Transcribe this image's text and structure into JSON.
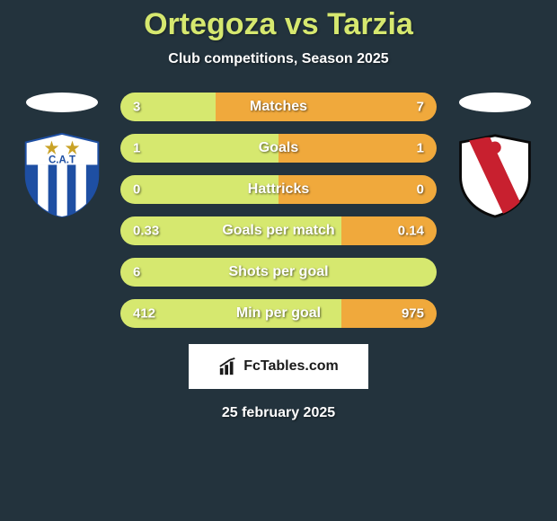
{
  "background_color": "#23333d",
  "accent_color": "#d6e86f",
  "bar_right_color": "#f0a93c",
  "text_color": "#ffffff",
  "title": "Ortegoza vs Tarzia",
  "title_fontsize": 34,
  "subtitle": "Club competitions, Season 2025",
  "subtitle_fontsize": 16,
  "date": "25 february 2025",
  "player_left": {
    "crest": {
      "type": "shield",
      "bg": "#ffffff",
      "stripes": [
        "#1e4fa3",
        "#ffffff",
        "#1e4fa3",
        "#ffffff",
        "#1e4fa3"
      ],
      "initials": "C.A.T",
      "stars": 2,
      "star_color": "#c9a227"
    }
  },
  "player_right": {
    "crest": {
      "type": "shield",
      "bg": "#ffffff",
      "sash_color": "#c8202f",
      "border_color": "#0a0a0a"
    }
  },
  "bars": [
    {
      "label": "Matches",
      "left": "3",
      "right": "7",
      "left_pct": 30
    },
    {
      "label": "Goals",
      "left": "1",
      "right": "1",
      "left_pct": 50
    },
    {
      "label": "Hattricks",
      "left": "0",
      "right": "0",
      "left_pct": 50
    },
    {
      "label": "Goals per match",
      "left": "0.33",
      "right": "0.14",
      "left_pct": 70
    },
    {
      "label": "Shots per goal",
      "left": "6",
      "right": "",
      "left_pct": 100
    },
    {
      "label": "Min per goal",
      "left": "412",
      "right": "975",
      "left_pct": 70
    }
  ],
  "bar_style": {
    "height": 32,
    "radius": 16,
    "gap": 14,
    "label_fontsize": 16,
    "value_fontsize": 15
  },
  "watermark": {
    "text": "FcTables.com",
    "bg": "#ffffff",
    "text_color": "#1a1a1a"
  }
}
